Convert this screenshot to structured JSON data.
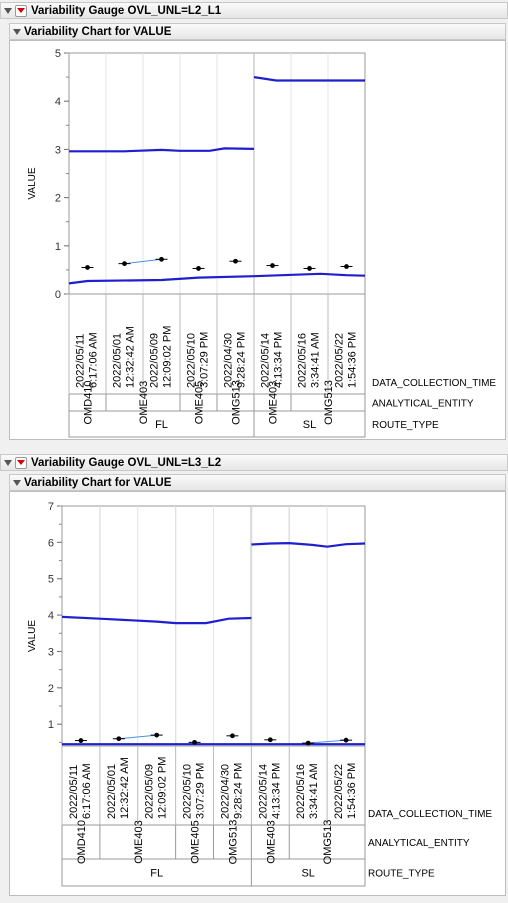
{
  "sections": [
    {
      "gauge_title": "Variability Gauge OVL_UNL=L2_L1",
      "chart_title": "Variability Chart for VALUE"
    },
    {
      "gauge_title": "Variability Gauge OVL_UNL=L3_L2",
      "chart_title": "Variability Chart for VALUE"
    }
  ],
  "chart_data": [
    {
      "type": "variability",
      "ylabel": "VALUE",
      "ylim": [
        0,
        5
      ],
      "yticks": [
        0,
        1,
        2,
        3,
        4,
        5
      ],
      "level_labels": [
        "DATA_COLLECTION_TIME",
        "ANALYTICAL_ENTITY",
        "ROUTE_TYPE"
      ],
      "cells": [
        {
          "time": [
            "2022/05/11",
            "6:17:06 AM"
          ],
          "value": 0.55
        },
        {
          "time": [
            "2022/05/01",
            "12:32:42 AM"
          ],
          "value": 0.63
        },
        {
          "time": [
            "2022/05/09",
            "12:09:02 PM"
          ],
          "value": 0.72
        },
        {
          "time": [
            "2022/05/10",
            "3:07:29 PM"
          ],
          "value": 0.53
        },
        {
          "time": [
            "2022/04/30",
            "9:28:24 PM"
          ],
          "value": 0.68
        },
        {
          "time": [
            "2022/05/14",
            "4:13:34 PM"
          ],
          "value": 0.59
        },
        {
          "time": [
            "2022/05/16",
            "3:34:41 AM"
          ],
          "value": 0.53
        },
        {
          "time": [
            "2022/05/22",
            "1:54:36 PM"
          ],
          "value": 0.57
        }
      ],
      "entities": [
        {
          "name": "OMD410",
          "span": 1
        },
        {
          "name": "OME403",
          "span": 2
        },
        {
          "name": "OME405",
          "span": 1
        },
        {
          "name": "OMG513",
          "span": 1
        },
        {
          "name": "OME403",
          "span": 1
        },
        {
          "name": "OMG513",
          "span": 2
        }
      ],
      "routes": [
        {
          "name": "FL",
          "span": 5
        },
        {
          "name": "SL",
          "span": 3
        }
      ],
      "blue_lines": [
        [
          [
            0,
            2.96
          ],
          [
            1.5,
            2.96
          ],
          [
            2.5,
            2.99
          ],
          [
            3.0,
            2.97
          ],
          [
            3.8,
            2.97
          ],
          [
            4.2,
            3.02
          ],
          [
            5.0,
            3.01
          ]
        ],
        [
          [
            5.0,
            4.5
          ],
          [
            5.6,
            4.43
          ],
          [
            8.0,
            4.43
          ]
        ],
        [
          [
            0,
            0.22
          ],
          [
            0.5,
            0.27
          ],
          [
            2.5,
            0.29
          ],
          [
            3.5,
            0.34
          ],
          [
            5.0,
            0.37
          ],
          [
            6.8,
            0.42
          ],
          [
            7.5,
            0.39
          ],
          [
            8.0,
            0.38
          ]
        ]
      ],
      "group_lines": [
        [
          1,
          2
        ]
      ]
    },
    {
      "type": "variability",
      "ylabel": "VALUE",
      "ylim": [
        0.4,
        7
      ],
      "yticks": [
        1,
        2,
        3,
        4,
        5,
        6,
        7
      ],
      "level_labels": [
        "DATA_COLLECTION_TIME",
        "ANALYTICAL_ENTITY",
        "ROUTE_TYPE"
      ],
      "cells": [
        {
          "time": [
            "2022/05/11",
            "6:17:06 AM"
          ],
          "value": 0.55
        },
        {
          "time": [
            "2022/05/01",
            "12:32:42 AM"
          ],
          "value": 0.6
        },
        {
          "time": [
            "2022/05/09",
            "12:09:02 PM"
          ],
          "value": 0.7
        },
        {
          "time": [
            "2022/05/10",
            "3:07:29 PM"
          ],
          "value": 0.5
        },
        {
          "time": [
            "2022/04/30",
            "9:28:24 PM"
          ],
          "value": 0.68
        },
        {
          "time": [
            "2022/05/14",
            "4:13:34 PM"
          ],
          "value": 0.57
        },
        {
          "time": [
            "2022/05/16",
            "3:34:41 AM"
          ],
          "value": 0.48
        },
        {
          "time": [
            "2022/05/22",
            "1:54:36 PM"
          ],
          "value": 0.56
        }
      ],
      "entities": [
        {
          "name": "OMD410",
          "span": 1
        },
        {
          "name": "OME403",
          "span": 2
        },
        {
          "name": "OME405",
          "span": 1
        },
        {
          "name": "OMG513",
          "span": 1
        },
        {
          "name": "OME403",
          "span": 1
        },
        {
          "name": "OMG513",
          "span": 2
        }
      ],
      "routes": [
        {
          "name": "FL",
          "span": 5
        },
        {
          "name": "SL",
          "span": 3
        }
      ],
      "blue_lines": [
        [
          [
            0,
            3.95
          ],
          [
            1.0,
            3.9
          ],
          [
            2.5,
            3.82
          ],
          [
            3.0,
            3.78
          ],
          [
            3.8,
            3.78
          ],
          [
            4.4,
            3.9
          ],
          [
            5.0,
            3.92
          ]
        ],
        [
          [
            5.0,
            5.94
          ],
          [
            5.5,
            5.97
          ],
          [
            6.0,
            5.98
          ],
          [
            6.6,
            5.93
          ],
          [
            7.0,
            5.88
          ],
          [
            7.5,
            5.95
          ],
          [
            8.0,
            5.97
          ]
        ],
        [
          [
            0,
            0.45
          ],
          [
            8.0,
            0.45
          ]
        ]
      ],
      "group_lines": [
        [
          1,
          2
        ],
        [
          6,
          7
        ]
      ]
    }
  ]
}
